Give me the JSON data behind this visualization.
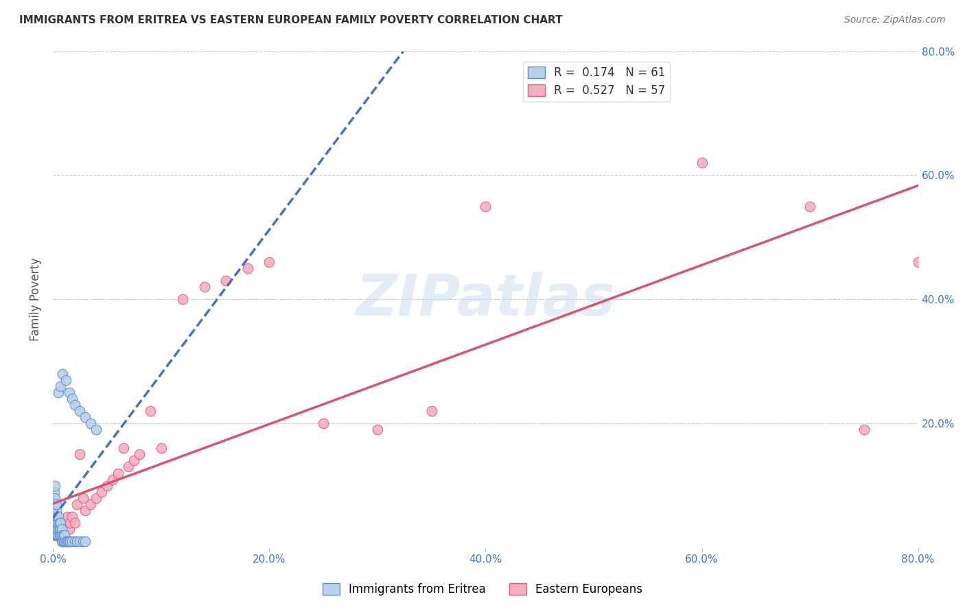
{
  "title": "IMMIGRANTS FROM ERITREA VS EASTERN EUROPEAN FAMILY POVERTY CORRELATION CHART",
  "source": "Source: ZipAtlas.com",
  "ylabel": "Family Poverty",
  "xlim": [
    0.0,
    0.8
  ],
  "ylim": [
    0.0,
    0.8
  ],
  "legend_labels": [
    "Immigrants from Eritrea",
    "Eastern Europeans"
  ],
  "R_eritrea": 0.174,
  "N_eritrea": 61,
  "R_eastern": 0.527,
  "N_eastern": 57,
  "color_eritrea_fill": "#b8d0ea",
  "color_eastern_fill": "#f4afc0",
  "color_eritrea_edge": "#5b8fcf",
  "color_eastern_edge": "#e0607a",
  "color_eritrea_line": "#4472c4",
  "color_eastern_line": "#d9546e",
  "watermark": "ZIPatlas",
  "eritrea_x": [
    0.001,
    0.001,
    0.001,
    0.001,
    0.001,
    0.002,
    0.002,
    0.002,
    0.002,
    0.002,
    0.002,
    0.003,
    0.003,
    0.003,
    0.003,
    0.003,
    0.004,
    0.004,
    0.004,
    0.004,
    0.005,
    0.005,
    0.005,
    0.005,
    0.006,
    0.006,
    0.006,
    0.007,
    0.007,
    0.007,
    0.008,
    0.008,
    0.008,
    0.009,
    0.009,
    0.01,
    0.01,
    0.011,
    0.011,
    0.012,
    0.013,
    0.014,
    0.015,
    0.016,
    0.018,
    0.02,
    0.022,
    0.025,
    0.028,
    0.03,
    0.005,
    0.007,
    0.009,
    0.012,
    0.015,
    0.018,
    0.02,
    0.025,
    0.03,
    0.035,
    0.04
  ],
  "eritrea_y": [
    0.05,
    0.06,
    0.07,
    0.08,
    0.09,
    0.04,
    0.05,
    0.06,
    0.07,
    0.08,
    0.1,
    0.03,
    0.04,
    0.05,
    0.06,
    0.07,
    0.02,
    0.03,
    0.04,
    0.05,
    0.02,
    0.03,
    0.04,
    0.05,
    0.02,
    0.03,
    0.04,
    0.02,
    0.03,
    0.04,
    0.01,
    0.02,
    0.03,
    0.01,
    0.02,
    0.01,
    0.02,
    0.01,
    0.02,
    0.01,
    0.01,
    0.01,
    0.01,
    0.01,
    0.01,
    0.01,
    0.01,
    0.01,
    0.01,
    0.01,
    0.25,
    0.26,
    0.28,
    0.27,
    0.25,
    0.24,
    0.23,
    0.22,
    0.21,
    0.2,
    0.19
  ],
  "eastern_x": [
    0.001,
    0.001,
    0.001,
    0.002,
    0.002,
    0.002,
    0.003,
    0.003,
    0.003,
    0.004,
    0.004,
    0.005,
    0.005,
    0.006,
    0.006,
    0.007,
    0.007,
    0.008,
    0.008,
    0.009,
    0.01,
    0.011,
    0.012,
    0.013,
    0.015,
    0.016,
    0.018,
    0.02,
    0.022,
    0.025,
    0.028,
    0.03,
    0.035,
    0.04,
    0.045,
    0.05,
    0.055,
    0.06,
    0.065,
    0.07,
    0.075,
    0.08,
    0.09,
    0.1,
    0.12,
    0.14,
    0.16,
    0.18,
    0.2,
    0.25,
    0.3,
    0.35,
    0.4,
    0.6,
    0.7,
    0.75,
    0.8
  ],
  "eastern_y": [
    0.02,
    0.03,
    0.04,
    0.02,
    0.03,
    0.04,
    0.02,
    0.03,
    0.05,
    0.02,
    0.04,
    0.02,
    0.03,
    0.02,
    0.03,
    0.02,
    0.03,
    0.02,
    0.03,
    0.02,
    0.02,
    0.03,
    0.04,
    0.05,
    0.03,
    0.04,
    0.05,
    0.04,
    0.07,
    0.15,
    0.08,
    0.06,
    0.07,
    0.08,
    0.09,
    0.1,
    0.11,
    0.12,
    0.16,
    0.13,
    0.14,
    0.15,
    0.22,
    0.16,
    0.4,
    0.42,
    0.43,
    0.45,
    0.46,
    0.2,
    0.19,
    0.22,
    0.55,
    0.62,
    0.55,
    0.19,
    0.46
  ]
}
